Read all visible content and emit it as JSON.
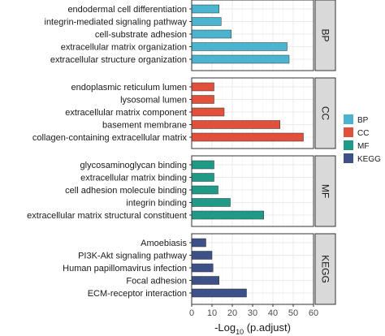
{
  "chart_data": {
    "type": "bar",
    "orientation": "horizontal",
    "xlabel_main": "-Log",
    "xlabel_sub": "10",
    "xlabel_rest": " (p.adjust)",
    "xlim": [
      0,
      60
    ],
    "xticks": [
      "0",
      "10",
      "20",
      "30",
      "40",
      "50",
      "60"
    ],
    "grid": true,
    "legend_position": "right",
    "legend": [
      {
        "key": "BP",
        "label": "BP",
        "color": "#4bb4cf"
      },
      {
        "key": "CC",
        "label": "CC",
        "color": "#e0503b"
      },
      {
        "key": "MF",
        "label": "MF",
        "color": "#1f9a86"
      },
      {
        "key": "KEGG",
        "label": "KEGG",
        "color": "#3c5187"
      }
    ],
    "panels": [
      {
        "name": "BP",
        "categories": [
          "endodermal cell differentiation",
          "integrin-mediated signaling pathway",
          "cell-substrate adhesion",
          "extracellular matrix organization",
          "extracellular structure organization"
        ],
        "values": [
          13.5,
          14.5,
          19.5,
          47,
          48
        ]
      },
      {
        "name": "CC",
        "categories": [
          "endoplasmic reticulum lumen",
          "lysosomal lumen",
          "extracellular matrix component",
          "basement membrane",
          "collagen-containing extracellular matrix"
        ],
        "values": [
          11,
          11,
          16,
          43.5,
          55
        ]
      },
      {
        "name": "MF",
        "categories": [
          "glycosaminoglycan binding",
          "extracellular matrix binding",
          "cell adhesion molecule binding",
          "integrin binding",
          "extracellular matrix structural constituent"
        ],
        "values": [
          11,
          11,
          13,
          19,
          35.5
        ]
      },
      {
        "name": "KEGG",
        "categories": [
          "Amoebiasis",
          "PI3K-Akt signaling pathway",
          "Human papillomavirus infection",
          "Focal adhesion",
          "ECM-receptor interaction"
        ],
        "values": [
          7,
          10,
          10.5,
          13.5,
          27
        ]
      }
    ]
  }
}
